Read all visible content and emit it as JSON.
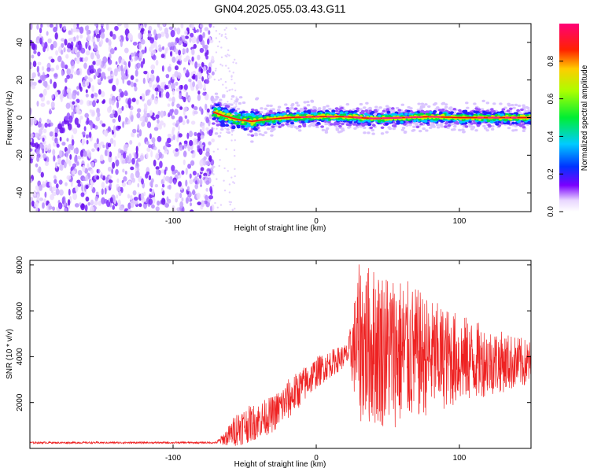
{
  "title": "GN04.2025.055.03.43.G11",
  "chart_data": [
    {
      "type": "heatmap",
      "xlabel": "Height of straight line (km)",
      "ylabel": "Frequency (Hz)",
      "xlim": [
        -200,
        150
      ],
      "ylim": [
        -50,
        50
      ],
      "xticks": [
        -100,
        0,
        100
      ],
      "yticks": [
        -40,
        -20,
        0,
        20,
        40
      ],
      "xtick_labels": [
        "-100",
        "0",
        "100"
      ],
      "ytick_labels": [
        "-40",
        "-20",
        "0",
        "20",
        "40"
      ],
      "colorbar": {
        "label": "Normalized spectral amplitude",
        "range": [
          0,
          1
        ],
        "ticks": [
          0.0,
          0.2,
          0.4,
          0.6,
          0.8
        ],
        "tick_labels": [
          "0.0",
          "0.2",
          "0.4",
          "0.6",
          "0.8"
        ],
        "colormap": "rainbow (white-purple-blue-cyan-green-yellow-red-pink)"
      },
      "features": {
        "noise_region_x": [
          -200,
          -72
        ],
        "noise_amplitude": "low (0.0-0.15)",
        "signal_track_x": [
          -72,
          150
        ],
        "signal_track_frequency": [
          {
            "x": -72,
            "y": 3
          },
          {
            "x": -65,
            "y": 1
          },
          {
            "x": -55,
            "y": -1
          },
          {
            "x": -45,
            "y": -2
          },
          {
            "x": -35,
            "y": -1
          },
          {
            "x": -20,
            "y": 0
          },
          {
            "x": 0,
            "y": 0.5
          },
          {
            "x": 20,
            "y": 0.5
          },
          {
            "x": 40,
            "y": -0.5
          },
          {
            "x": 60,
            "y": 0
          },
          {
            "x": 80,
            "y": 0.5
          },
          {
            "x": 100,
            "y": 0
          },
          {
            "x": 120,
            "y": 0
          },
          {
            "x": 150,
            "y": 0
          }
        ],
        "signal_core_amplitude": "high (0.8-1.0)",
        "signal_halo_amplitude": "medium (0.2-0.6)"
      }
    },
    {
      "type": "line",
      "xlabel": "Height of straight line (km)",
      "ylabel": "SNR (10 * v/v)",
      "xlim": [
        -200,
        150
      ],
      "ylim": [
        0,
        8200
      ],
      "xticks": [
        -100,
        0,
        100
      ],
      "yticks": [
        2000,
        4000,
        6000,
        8000
      ],
      "xtick_labels": [
        "-100",
        "0",
        "100"
      ],
      "ytick_labels": [
        "2000",
        "4000",
        "6000",
        "8000"
      ],
      "color": "#ee2222",
      "envelope": [
        {
          "x": -200,
          "mean": 250,
          "spread": 40
        },
        {
          "x": -70,
          "mean": 250,
          "spread": 40
        },
        {
          "x": -62,
          "mean": 500,
          "spread": 400
        },
        {
          "x": -55,
          "mean": 900,
          "spread": 800
        },
        {
          "x": -45,
          "mean": 1100,
          "spread": 800
        },
        {
          "x": -30,
          "mean": 1500,
          "spread": 800
        },
        {
          "x": -20,
          "mean": 2100,
          "spread": 900
        },
        {
          "x": -10,
          "mean": 2700,
          "spread": 800
        },
        {
          "x": 0,
          "mean": 3300,
          "spread": 700
        },
        {
          "x": 10,
          "mean": 3700,
          "spread": 600
        },
        {
          "x": 22,
          "mean": 4100,
          "spread": 500
        },
        {
          "x": 25,
          "mean": 4300,
          "spread": 1500
        },
        {
          "x": 30,
          "mean": 4600,
          "spread": 3500
        },
        {
          "x": 45,
          "mean": 4400,
          "spread": 3500
        },
        {
          "x": 60,
          "mean": 4200,
          "spread": 3300
        },
        {
          "x": 80,
          "mean": 4000,
          "spread": 2500
        },
        {
          "x": 100,
          "mean": 3900,
          "spread": 2000
        },
        {
          "x": 120,
          "mean": 3800,
          "spread": 1500
        },
        {
          "x": 150,
          "mean": 3700,
          "spread": 1000
        }
      ]
    }
  ]
}
